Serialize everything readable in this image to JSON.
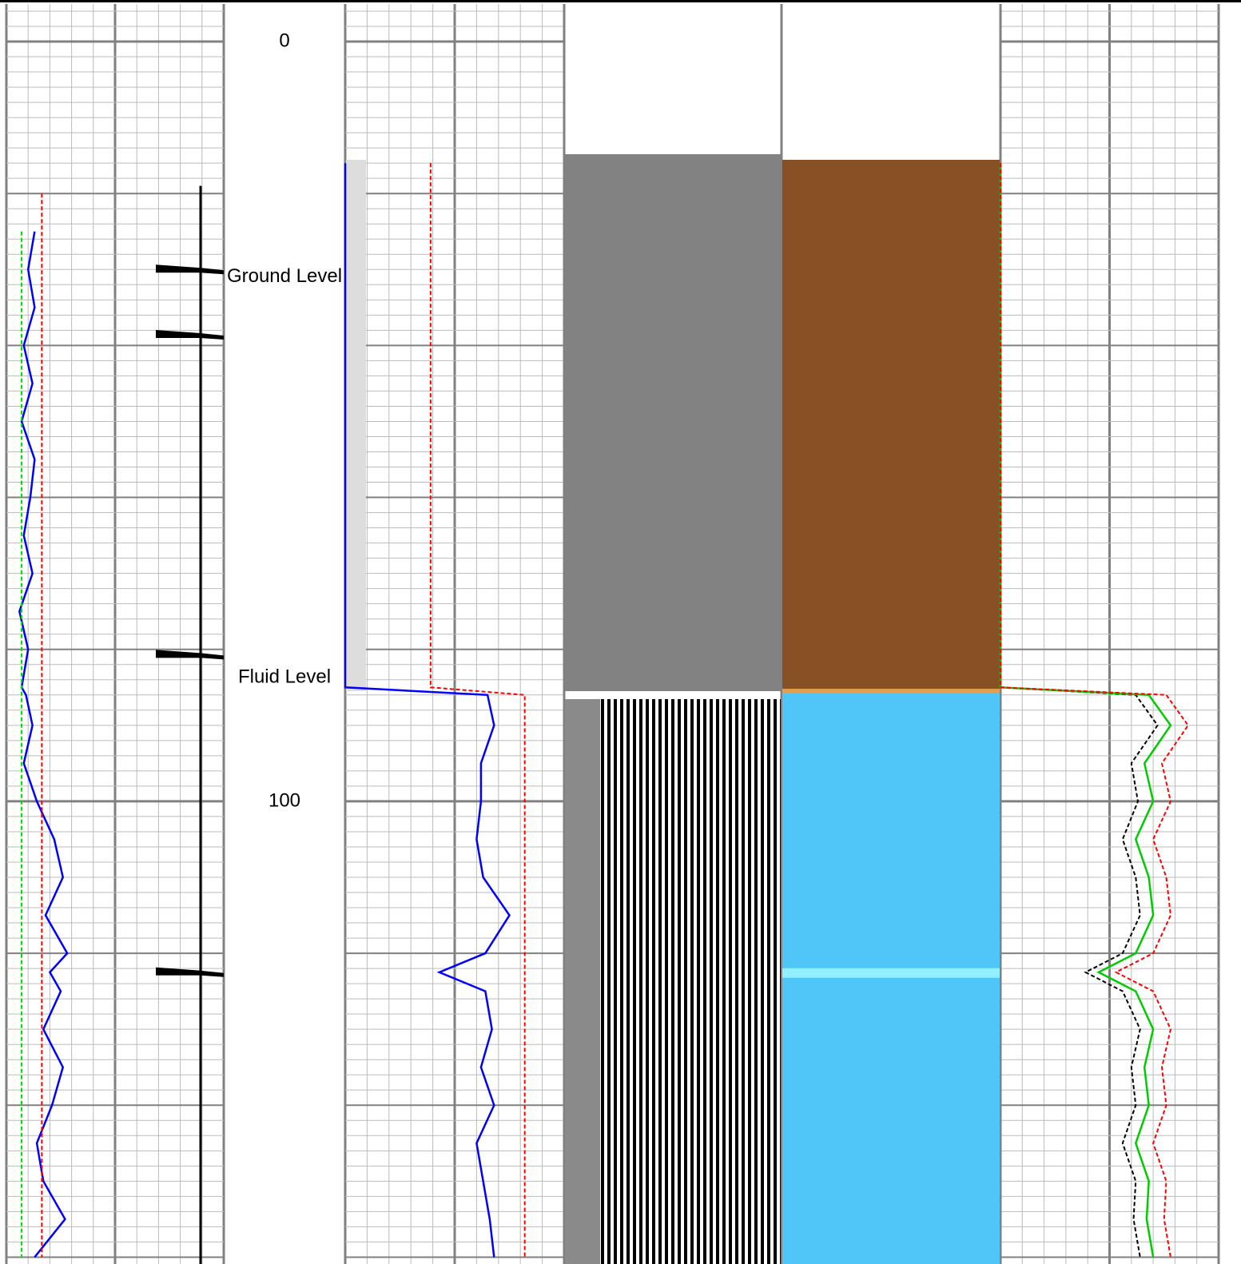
{
  "chart_data": {
    "type": "well-log",
    "ylim": [
      -5.47,
      160.9
    ],
    "yticks": [
      0,
      100
    ],
    "xlim": [
      0,
      1
    ],
    "grid": true,
    "annotations": [
      {
        "text": "Ground Level",
        "depth": 31.0
      },
      {
        "text": "Fluid Level",
        "depth": 83.7
      }
    ],
    "markers": [
      30.1,
      38.7,
      80.8,
      122.6
    ],
    "depth": [
      16,
      20,
      25,
      30,
      35,
      40,
      45,
      50,
      55,
      60,
      65,
      70,
      75,
      80,
      85,
      86,
      90,
      95,
      100,
      105,
      110,
      115,
      120,
      122.5,
      125,
      130,
      135,
      140,
      145,
      150,
      155,
      160
    ],
    "tracks": [
      {
        "series": [
          {
            "color": "#0000ff",
            "dash": false,
            "values": [
              null,
              null,
              0.13,
              0.1,
              0.13,
              0.08,
              0.12,
              0.07,
              0.13,
              0.11,
              0.08,
              0.12,
              0.06,
              0.1,
              0.07,
              0.09,
              0.12,
              0.08,
              0.14,
              0.22,
              0.26,
              0.18,
              0.28,
              0.2,
              0.25,
              0.17,
              0.26,
              0.21,
              0.14,
              0.17,
              0.27,
              0.13
            ]
          },
          {
            "color": "#ff0000",
            "dash": true,
            "values": [
              null,
              0.163,
              0.163,
              0.163,
              0.163,
              0.163,
              0.163,
              0.163,
              0.163,
              0.163,
              0.163,
              0.163,
              0.163,
              0.163,
              0.163,
              0.163,
              0.163,
              0.163,
              0.163,
              0.163,
              0.163,
              0.163,
              0.163,
              0.163,
              0.163,
              0.163,
              0.163,
              0.163,
              0.163,
              0.163,
              0.163,
              0.163
            ]
          },
          {
            "color": "#00dd00",
            "dash": true,
            "values": [
              null,
              null,
              0.07,
              0.07,
              0.07,
              0.07,
              0.07,
              0.07,
              0.07,
              0.07,
              0.07,
              0.07,
              0.07,
              0.07,
              0.07,
              0.07,
              0.07,
              0.07,
              0.07,
              0.07,
              0.07,
              0.07,
              0.07,
              0.07,
              0.07,
              0.07,
              0.07,
              0.07,
              0.07,
              0.07,
              0.07,
              0.07
            ]
          }
        ]
      },
      {
        "series": [
          {
            "color": "#0000ff",
            "dash": false,
            "values": [
              0,
              0,
              0,
              0,
              0,
              0,
              0,
              0,
              0,
              0,
              0,
              0,
              0,
              0,
              0,
              0.65,
              0.68,
              0.62,
              0.62,
              0.6,
              0.63,
              0.75,
              0.64,
              0.43,
              0.64,
              0.67,
              0.62,
              0.68,
              0.6,
              0.63,
              0.66,
              0.68
            ]
          },
          {
            "color": "#ff0000",
            "dash": true,
            "values": [
              0.39,
              0.39,
              0.39,
              0.39,
              0.39,
              0.39,
              0.39,
              0.39,
              0.39,
              0.39,
              0.39,
              0.39,
              0.39,
              0.39,
              0.39,
              0.82,
              0.82,
              0.82,
              0.82,
              0.82,
              0.82,
              0.82,
              0.82,
              0.82,
              0.82,
              0.82,
              0.82,
              0.82,
              0.82,
              0.82,
              0.82,
              0.82
            ]
          }
        ]
      },
      {
        "series": [
          {
            "color": "#000000",
            "dash": true,
            "values": [
              0,
              0,
              0,
              0,
              0,
              0,
              0,
              0,
              0,
              0,
              0,
              0,
              0,
              0,
              0,
              0.62,
              0.72,
              0.6,
              0.63,
              0.56,
              0.62,
              0.64,
              0.56,
              0.39,
              0.56,
              0.64,
              0.6,
              0.62,
              0.56,
              0.62,
              0.61,
              0.64
            ]
          },
          {
            "color": "#00cc00",
            "dash": false,
            "values": [
              0,
              0,
              0,
              0,
              0,
              0,
              0,
              0,
              0,
              0,
              0,
              0,
              0,
              0,
              0,
              0.68,
              0.78,
              0.66,
              0.7,
              0.62,
              0.68,
              0.7,
              0.62,
              0.45,
              0.62,
              0.7,
              0.66,
              0.68,
              0.62,
              0.68,
              0.67,
              0.7
            ]
          },
          {
            "color": "#ff0000",
            "dash": true,
            "values": [
              0,
              0,
              0,
              0,
              0,
              0,
              0,
              0,
              0,
              0,
              0,
              0,
              0,
              0,
              0,
              0.76,
              0.86,
              0.74,
              0.78,
              0.7,
              0.76,
              0.78,
              0.7,
              0.53,
              0.7,
              0.78,
              0.74,
              0.76,
              0.7,
              0.76,
              0.75,
              0.78
            ]
          }
        ]
      }
    ]
  }
}
